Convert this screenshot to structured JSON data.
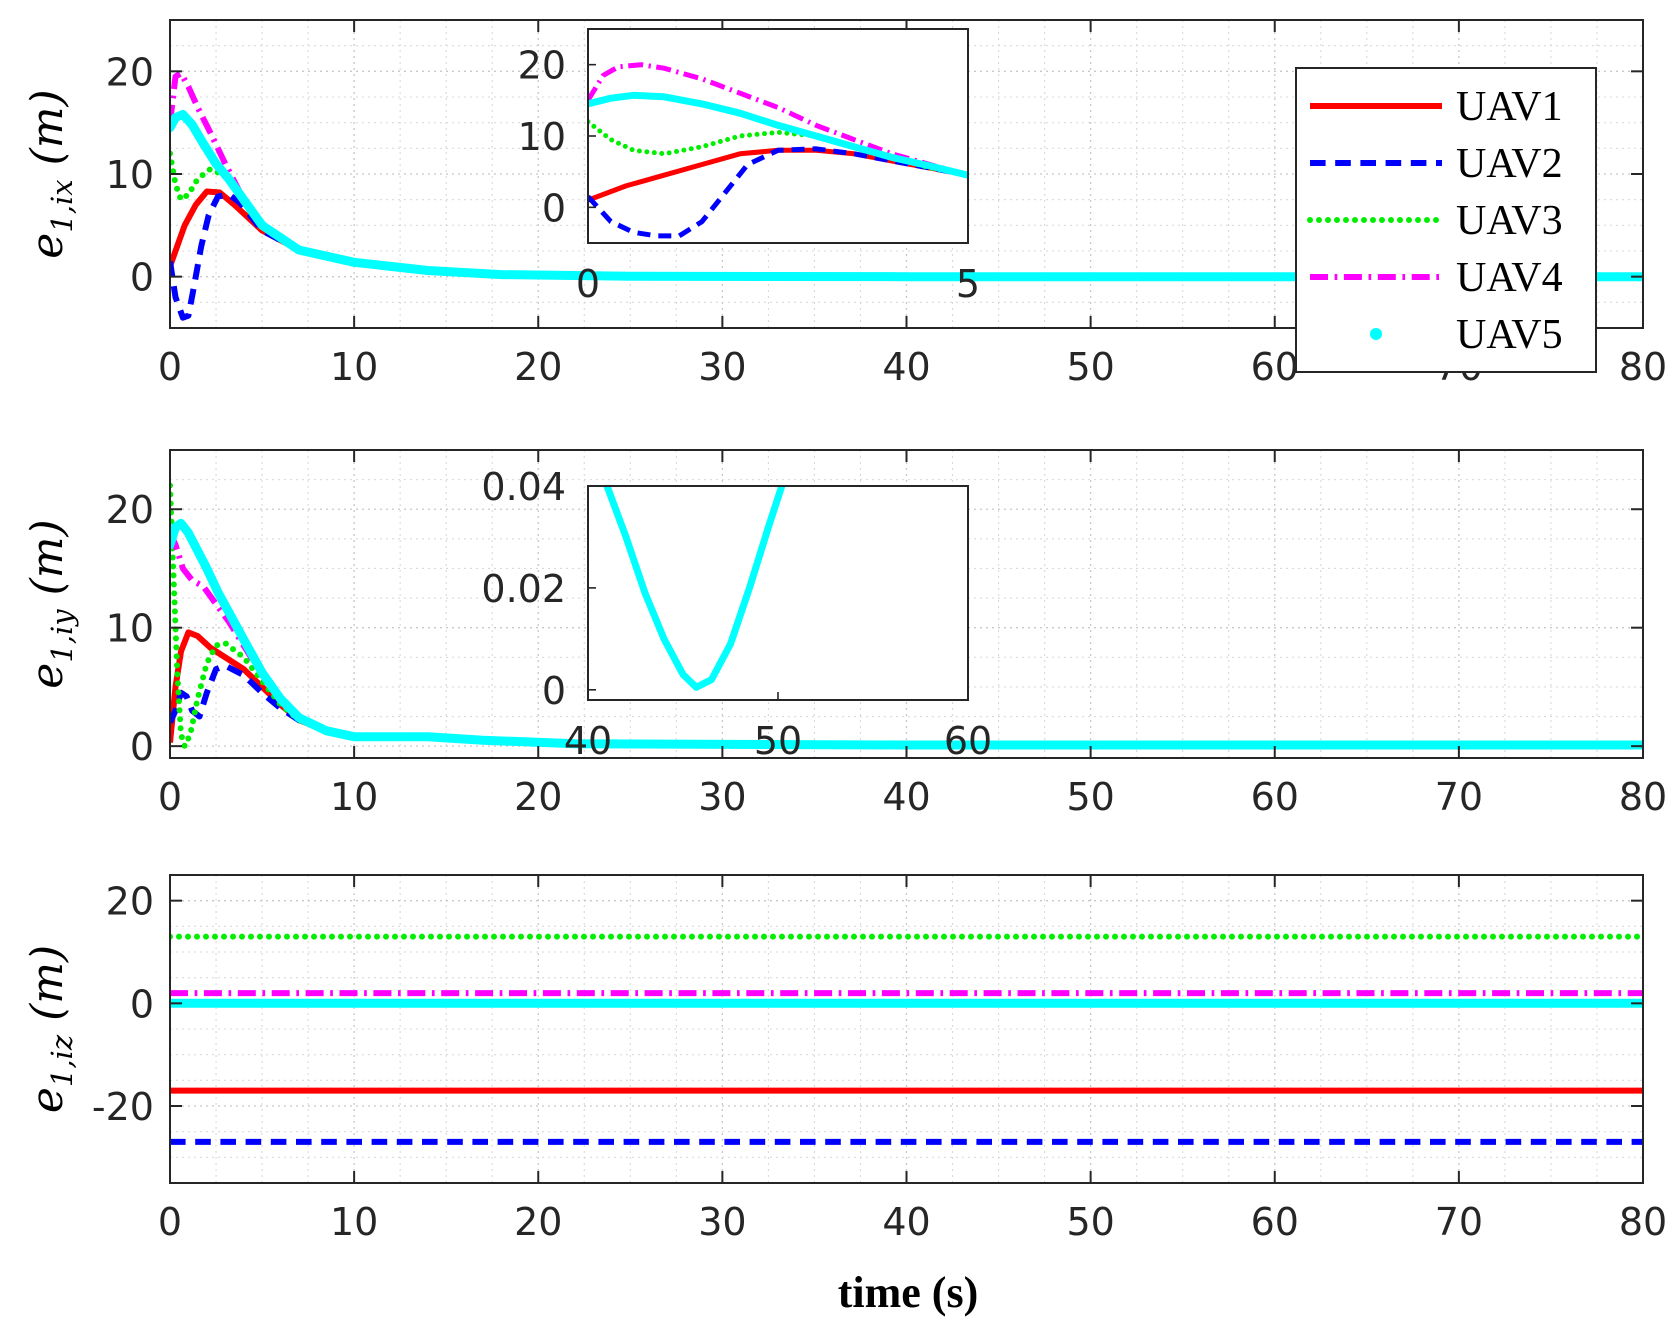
{
  "chart_data": {
    "type": "line",
    "xlabel": "time (s)",
    "legend": {
      "placement": "top-right",
      "entries": [
        "UAV1",
        "UAV2",
        "UAV3",
        "UAV4",
        "UAV5"
      ]
    },
    "series_styles": [
      {
        "name": "UAV1",
        "color": "#ff0000",
        "style": "solid"
      },
      {
        "name": "UAV2",
        "color": "#0000ff",
        "style": "dashed"
      },
      {
        "name": "UAV3",
        "color": "#00ee00",
        "style": "dotted"
      },
      {
        "name": "UAV4",
        "color": "#ff00ff",
        "style": "dashdot"
      },
      {
        "name": "UAV5",
        "color": "#00ffff",
        "style": "point"
      }
    ],
    "panels": [
      {
        "id": "x",
        "ylabel": {
          "base": "e",
          "sub": "1,ix",
          "unit": "(m)"
        },
        "xlim": [
          0,
          80
        ],
        "ylim": [
          -5,
          25
        ],
        "xticks": [
          0,
          10,
          20,
          30,
          40,
          50,
          60,
          70,
          80
        ],
        "yticks": [
          0,
          10,
          20
        ],
        "grid": true,
        "series": [
          {
            "name": "UAV1",
            "x": [
              0,
              0.3,
              0.8,
              1.4,
              2,
              2.7,
              3.5,
              5,
              7,
              10,
              14,
              18,
              25,
              40,
              80
            ],
            "y": [
              1,
              2.5,
              5,
              7,
              8.3,
              8.2,
              7,
              4.5,
              2.6,
              1.4,
              0.6,
              0.2,
              0.05,
              0,
              0
            ]
          },
          {
            "name": "UAV2",
            "x": [
              0,
              0.3,
              0.7,
              1,
              1.3,
              1.7,
              2.1,
              2.6,
              3.2,
              3.8,
              5,
              7,
              10,
              14,
              18,
              25,
              40,
              80
            ],
            "y": [
              1.5,
              -2,
              -4,
              -3.8,
              -1,
              3,
              6,
              7.8,
              8,
              7.2,
              4.5,
              2.6,
              1.4,
              0.6,
              0.2,
              0.05,
              0,
              0
            ]
          },
          {
            "name": "UAV3",
            "x": [
              0,
              0.3,
              0.6,
              1,
              1.5,
              2.2,
              3,
              3.8,
              5,
              7,
              10,
              14,
              18,
              25,
              40,
              80
            ],
            "y": [
              12,
              9,
              7.5,
              8,
              9.5,
              10.5,
              9.8,
              8,
              4.8,
              2.6,
              1.4,
              0.6,
              0.2,
              0.05,
              0,
              0
            ]
          },
          {
            "name": "UAV4",
            "x": [
              0,
              0.3,
              0.6,
              1,
              1.5,
              2.2,
              3,
              4,
              5,
              7,
              10,
              14,
              18,
              25,
              40,
              80
            ],
            "y": [
              15,
              19.5,
              19.8,
              18.5,
              16.5,
              14,
              11,
              7.5,
              5,
              2.6,
              1.4,
              0.6,
              0.2,
              0.05,
              0,
              0
            ]
          },
          {
            "name": "UAV5",
            "x": [
              0,
              0.3,
              0.7,
              1.2,
              1.8,
              2.5,
              3.2,
              4,
              5,
              7,
              10,
              14,
              18,
              25,
              40,
              80
            ],
            "y": [
              14.5,
              15.5,
              15.8,
              14.8,
              13,
              11,
              9.5,
              7.5,
              5,
              2.6,
              1.4,
              0.6,
              0.2,
              0.05,
              0,
              0
            ]
          }
        ],
        "inset": {
          "xlim": [
            0,
            5
          ],
          "ylim": [
            -5,
            25
          ],
          "xticks": [
            0,
            5
          ],
          "yticks": [
            0,
            10,
            20
          ],
          "grid": false,
          "series": [
            {
              "name": "UAV1",
              "x": [
                0,
                0.5,
                1,
                1.5,
                2,
                2.5,
                3,
                3.5,
                4,
                4.5,
                5
              ],
              "y": [
                1,
                3,
                4.5,
                6,
                7.5,
                8,
                8,
                7.5,
                6.5,
                5.5,
                4.5
              ]
            },
            {
              "name": "UAV2",
              "x": [
                0,
                0.3,
                0.6,
                0.9,
                1.2,
                1.5,
                1.8,
                2.1,
                2.5,
                3,
                3.5,
                4,
                4.5,
                5
              ],
              "y": [
                1.5,
                -2,
                -3.5,
                -4,
                -4,
                -2,
                2,
                6,
                8,
                8.2,
                7.5,
                6.5,
                5.5,
                4.5
              ]
            },
            {
              "name": "UAV3",
              "x": [
                0,
                0.3,
                0.6,
                1,
                1.5,
                2,
                2.5,
                3,
                3.5,
                4,
                4.5,
                5
              ],
              "y": [
                12,
                9.5,
                8,
                7.5,
                8.5,
                10,
                10.5,
                10,
                8.5,
                7,
                5.5,
                4.5
              ]
            },
            {
              "name": "UAV4",
              "x": [
                0,
                0.2,
                0.4,
                0.7,
                1,
                1.5,
                2,
                2.5,
                3,
                3.5,
                4,
                4.5,
                5
              ],
              "y": [
                15,
                18.5,
                19.7,
                20,
                19.5,
                18,
                16,
                14,
                11.5,
                9.5,
                7.5,
                6,
                4.5
              ]
            },
            {
              "name": "UAV5",
              "x": [
                0,
                0.3,
                0.6,
                1,
                1.5,
                2,
                2.5,
                3,
                3.5,
                4,
                4.5,
                5
              ],
              "y": [
                14.5,
                15.3,
                15.7,
                15.5,
                14.5,
                13.2,
                11.5,
                10,
                8.5,
                7,
                5.8,
                4.5
              ]
            }
          ]
        }
      },
      {
        "id": "y",
        "ylabel": {
          "base": "e",
          "sub": "1,iy",
          "unit": "(m)"
        },
        "xlim": [
          0,
          80
        ],
        "ylim": [
          -1,
          25
        ],
        "xticks": [
          0,
          10,
          20,
          30,
          40,
          50,
          60,
          70,
          80
        ],
        "yticks": [
          0,
          10,
          20
        ],
        "grid": true,
        "series": [
          {
            "name": "UAV1",
            "x": [
              0,
              0.3,
              0.6,
              1,
              1.5,
              2.2,
              3,
              4,
              5,
              6,
              7,
              8.5,
              10,
              14,
              17,
              22,
              40,
              80
            ],
            "y": [
              0.3,
              5,
              8,
              9.6,
              9.3,
              8.3,
              7.5,
              6.5,
              5,
              3.5,
              2.2,
              1.3,
              0.8,
              0.8,
              0.5,
              0.2,
              0.1,
              0.1
            ]
          },
          {
            "name": "UAV2",
            "x": [
              0,
              0.3,
              0.6,
              0.9,
              1.2,
              1.6,
              2,
              2.5,
              3,
              4,
              5,
              6,
              7,
              8.5,
              10,
              14,
              17,
              22,
              40,
              80
            ],
            "y": [
              2,
              3,
              4.5,
              4.2,
              3,
              2.5,
              4.5,
              6.5,
              6.8,
              6,
              4.5,
              3.2,
              2.2,
              1.3,
              0.8,
              0.8,
              0.5,
              0.2,
              0.1,
              0.1
            ]
          },
          {
            "name": "UAV3",
            "x": [
              0,
              0.2,
              0.4,
              0.6,
              0.8,
              1.1,
              1.5,
              2,
              2.5,
              3,
              4,
              5,
              6,
              7,
              8.5,
              10,
              14,
              17,
              22,
              40,
              80
            ],
            "y": [
              22,
              14,
              6,
              1,
              0,
              1,
              4,
              7,
              8.5,
              8.7,
              7.5,
              5.5,
              3.5,
              2.2,
              1.3,
              0.8,
              0.8,
              0.5,
              0.2,
              0.1,
              0.1
            ]
          },
          {
            "name": "UAV4",
            "x": [
              0,
              0.3,
              0.7,
              1.2,
              1.8,
              2.5,
              3.2,
              4,
              5,
              6,
              7,
              8.5,
              10,
              14,
              17,
              22,
              40,
              80
            ],
            "y": [
              18,
              17,
              15,
              14,
              13.5,
              12,
              10.5,
              8.5,
              6,
              3.8,
              2.3,
              1.3,
              0.8,
              0.8,
              0.5,
              0.2,
              0.1,
              0.1
            ]
          },
          {
            "name": "UAV5",
            "x": [
              0,
              0.3,
              0.6,
              1,
              1.5,
              2,
              2.6,
              3.3,
              4,
              5,
              6,
              7,
              8.5,
              10,
              14,
              17,
              22,
              40,
              80
            ],
            "y": [
              17,
              18.5,
              18.8,
              18,
              16.5,
              15,
              13,
              11,
              9,
              6.2,
              4,
              2.4,
              1.3,
              0.8,
              0.8,
              0.5,
              0.2,
              0.1,
              0.1
            ]
          }
        ],
        "inset": {
          "xlim": [
            40,
            60
          ],
          "ylim": [
            -0.002,
            0.04
          ],
          "xticks": [
            40,
            50,
            60
          ],
          "yticks": [
            0,
            0.02,
            0.04
          ],
          "grid": false,
          "series": [
            {
              "name": "UAV5",
              "x": [
                41,
                42,
                43,
                44,
                45,
                45.7,
                46.5,
                47.5,
                48.5,
                49.5,
                50.2
              ],
              "y": [
                0.04,
                0.03,
                0.019,
                0.01,
                0.003,
                0.0005,
                0.002,
                0.009,
                0.02,
                0.032,
                0.04
              ]
            }
          ]
        }
      },
      {
        "id": "z",
        "ylabel": {
          "base": "e",
          "sub": "1,iz",
          "unit": "(m)"
        },
        "xlim": [
          0,
          80
        ],
        "ylim": [
          -35,
          25
        ],
        "xticks": [
          0,
          10,
          20,
          30,
          40,
          50,
          60,
          70,
          80
        ],
        "yticks": [
          -20,
          0,
          20
        ],
        "grid": true,
        "series": [
          {
            "name": "UAV1",
            "x": [
              0,
              80
            ],
            "y": [
              -17,
              -17
            ]
          },
          {
            "name": "UAV2",
            "x": [
              0,
              80
            ],
            "y": [
              -27,
              -27
            ]
          },
          {
            "name": "UAV3",
            "x": [
              0,
              80
            ],
            "y": [
              13,
              13
            ]
          },
          {
            "name": "UAV4",
            "x": [
              0,
              80
            ],
            "y": [
              2,
              2
            ]
          },
          {
            "name": "UAV5",
            "x": [
              0,
              80
            ],
            "y": [
              0,
              0
            ]
          }
        ]
      }
    ]
  }
}
